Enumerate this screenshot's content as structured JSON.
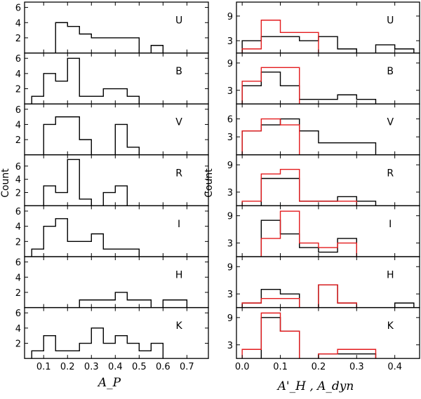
{
  "figure": {
    "ylabel_text": "Count",
    "left_xlabel": "A_P",
    "right_xlabel": "A'_H , A_dyn",
    "colors": {
      "black": "#000000",
      "red": "#e31a1c",
      "gray": "#777777"
    }
  },
  "chart_data": [
    {
      "type": "histogram",
      "column": "left",
      "xlabel": "A_P",
      "ylabel": "Count",
      "xlim": [
        0.02,
        0.79
      ],
      "xticks": [
        "0.1",
        "0.2",
        "0.3",
        "0.4",
        "0.5",
        "0.6",
        "0.7"
      ],
      "bin_width": 0.05,
      "panels": [
        {
          "band": "U",
          "ylim": [
            0,
            6.7
          ],
          "yticks": [
            2,
            4,
            6
          ],
          "series": [
            {
              "name": "black",
              "color": "#000000",
              "bins": [
                [
                  0.15,
                  4
                ],
                [
                  0.2,
                  3.5
                ],
                [
                  0.25,
                  2.5
                ],
                [
                  0.3,
                  2
                ],
                [
                  0.35,
                  2
                ],
                [
                  0.4,
                  2
                ],
                [
                  0.45,
                  2
                ],
                [
                  0.55,
                  1
                ]
              ]
            }
          ]
        },
        {
          "band": "B",
          "ylim": [
            0,
            6.7
          ],
          "yticks": [
            2,
            4,
            6
          ],
          "series": [
            {
              "name": "black",
              "color": "#000000",
              "bins": [
                [
                  0.05,
                  1
                ],
                [
                  0.1,
                  4
                ],
                [
                  0.15,
                  3
                ],
                [
                  0.2,
                  6
                ],
                [
                  0.25,
                  1
                ],
                [
                  0.3,
                  1
                ],
                [
                  0.35,
                  2
                ],
                [
                  0.4,
                  2
                ],
                [
                  0.45,
                  1
                ]
              ]
            }
          ]
        },
        {
          "band": "V",
          "ylim": [
            0,
            6.7
          ],
          "yticks": [
            2,
            4,
            6
          ],
          "series": [
            {
              "name": "black",
              "color": "#000000",
              "bins": [
                [
                  0.1,
                  4
                ],
                [
                  0.15,
                  5
                ],
                [
                  0.2,
                  5
                ],
                [
                  0.25,
                  2
                ],
                [
                  0.4,
                  4
                ],
                [
                  0.45,
                  1
                ]
              ]
            }
          ]
        },
        {
          "band": "R",
          "ylim": [
            0,
            7.7
          ],
          "yticks": [
            2,
            4,
            6
          ],
          "series": [
            {
              "name": "black",
              "color": "#000000",
              "bins": [
                [
                  0.1,
                  3
                ],
                [
                  0.15,
                  2
                ],
                [
                  0.2,
                  7
                ],
                [
                  0.25,
                  1
                ],
                [
                  0.35,
                  2
                ],
                [
                  0.4,
                  3
                ]
              ]
            }
          ]
        },
        {
          "band": "I",
          "ylim": [
            0,
            6.7
          ],
          "yticks": [
            2,
            4,
            6
          ],
          "series": [
            {
              "name": "black",
              "color": "#000000",
              "bins": [
                [
                  0.05,
                  1
                ],
                [
                  0.1,
                  4
                ],
                [
                  0.15,
                  5
                ],
                [
                  0.2,
                  2
                ],
                [
                  0.25,
                  2
                ],
                [
                  0.3,
                  3
                ],
                [
                  0.35,
                  1
                ],
                [
                  0.4,
                  1
                ],
                [
                  0.45,
                  1
                ]
              ]
            }
          ]
        },
        {
          "band": "H",
          "ylim": [
            0,
            6.7
          ],
          "yticks": [
            2,
            4,
            6
          ],
          "series": [
            {
              "name": "black",
              "color": "#000000",
              "bins": [
                [
                  0.25,
                  1
                ],
                [
                  0.3,
                  1
                ],
                [
                  0.35,
                  1
                ],
                [
                  0.4,
                  2
                ],
                [
                  0.45,
                  1
                ],
                [
                  0.5,
                  1
                ],
                [
                  0.6,
                  1
                ],
                [
                  0.65,
                  1
                ]
              ]
            }
          ]
        },
        {
          "band": "K",
          "ylim": [
            0,
            6.7
          ],
          "yticks": [
            2,
            4,
            6
          ],
          "series": [
            {
              "name": "black",
              "color": "#000000",
              "bins": [
                [
                  0.05,
                  1
                ],
                [
                  0.1,
                  3
                ],
                [
                  0.15,
                  1
                ],
                [
                  0.2,
                  1
                ],
                [
                  0.25,
                  2
                ],
                [
                  0.3,
                  4
                ],
                [
                  0.35,
                  2
                ],
                [
                  0.4,
                  3
                ],
                [
                  0.45,
                  2
                ],
                [
                  0.5,
                  1
                ],
                [
                  0.55,
                  2
                ]
              ]
            }
          ]
        }
      ]
    },
    {
      "type": "histogram",
      "column": "right",
      "xlabel": "A'_H , A_dyn",
      "ylabel": "",
      "xlim": [
        -0.015,
        0.465
      ],
      "xticks": [
        "0.0",
        "0.1",
        "0.2",
        "0.3",
        "0.4"
      ],
      "bin_width": 0.05,
      "panels": [
        {
          "band": "U",
          "ylim": [
            0,
            12.4
          ],
          "yticks": [
            3,
            9
          ],
          "series": [
            {
              "name": "black",
              "color": "#000000",
              "bins": [
                [
                  0.0,
                  3
                ],
                [
                  0.05,
                  4
                ],
                [
                  0.1,
                  4
                ],
                [
                  0.15,
                  3
                ],
                [
                  0.2,
                  4
                ],
                [
                  0.25,
                  1
                ],
                [
                  0.35,
                  2
                ],
                [
                  0.4,
                  1
                ]
              ]
            },
            {
              "name": "red",
              "color": "#e31a1c",
              "bins": [
                [
                  0.0,
                  1
                ],
                [
                  0.05,
                  8
                ],
                [
                  0.1,
                  5
                ],
                [
                  0.15,
                  5
                ]
              ]
            }
          ]
        },
        {
          "band": "B",
          "ylim": [
            0,
            11.2
          ],
          "yticks": [
            3,
            9
          ],
          "series": [
            {
              "name": "black",
              "color": "#000000",
              "bins": [
                [
                  0.0,
                  4
                ],
                [
                  0.05,
                  7
                ],
                [
                  0.1,
                  4
                ],
                [
                  0.15,
                  1
                ],
                [
                  0.2,
                  1
                ],
                [
                  0.25,
                  2
                ],
                [
                  0.3,
                  1
                ]
              ]
            },
            {
              "name": "red",
              "color": "#e31a1c",
              "bins": [
                [
                  0.0,
                  5
                ],
                [
                  0.05,
                  8
                ],
                [
                  0.1,
                  8
                ]
              ]
            }
          ]
        },
        {
          "band": "V",
          "ylim": [
            0,
            8.5
          ],
          "yticks": [
            3,
            6
          ],
          "series": [
            {
              "name": "black",
              "color": "#000000",
              "bins": [
                [
                  0.0,
                  4
                ],
                [
                  0.05,
                  5
                ],
                [
                  0.1,
                  6
                ],
                [
                  0.15,
                  4
                ],
                [
                  0.2,
                  2
                ],
                [
                  0.25,
                  2
                ],
                [
                  0.3,
                  2
                ]
              ]
            },
            {
              "name": "red",
              "color": "#e31a1c",
              "bins": [
                [
                  0.0,
                  4
                ],
                [
                  0.05,
                  6
                ],
                [
                  0.1,
                  5
                ]
              ]
            }
          ]
        },
        {
          "band": "R",
          "ylim": [
            0,
            11.2
          ],
          "yticks": [
            3,
            9
          ],
          "series": [
            {
              "name": "black",
              "color": "#000000",
              "bins": [
                [
                  0.05,
                  6
                ],
                [
                  0.1,
                  6
                ],
                [
                  0.15,
                  1
                ],
                [
                  0.2,
                  1
                ],
                [
                  0.25,
                  2
                ],
                [
                  0.3,
                  1
                ]
              ]
            },
            {
              "name": "red",
              "color": "#e31a1c",
              "bins": [
                [
                  0.0,
                  1
                ],
                [
                  0.05,
                  7
                ],
                [
                  0.1,
                  8
                ],
                [
                  0.15,
                  1
                ],
                [
                  0.2,
                  1
                ],
                [
                  0.25,
                  1
                ]
              ]
            }
          ]
        },
        {
          "band": "I",
          "ylim": [
            0,
            11.2
          ],
          "yticks": [
            3,
            9
          ],
          "series": [
            {
              "name": "black",
              "color": "#000000",
              "bins": [
                [
                  0.05,
                  8
                ],
                [
                  0.1,
                  5
                ],
                [
                  0.15,
                  2
                ],
                [
                  0.2,
                  1
                ],
                [
                  0.25,
                  4
                ]
              ]
            },
            {
              "name": "red",
              "color": "#e31a1c",
              "bins": [
                [
                  0.05,
                  4
                ],
                [
                  0.1,
                  10
                ],
                [
                  0.15,
                  3
                ],
                [
                  0.2,
                  2
                ],
                [
                  0.25,
                  3
                ]
              ]
            }
          ]
        },
        {
          "band": "H",
          "ylim": [
            0,
            11.2
          ],
          "yticks": [
            3,
            9
          ],
          "series": [
            {
              "name": "black",
              "color": "#000000",
              "bins": [
                [
                  0.0,
                  1
                ],
                [
                  0.05,
                  4
                ],
                [
                  0.1,
                  3
                ],
                [
                  0.2,
                  5
                ],
                [
                  0.25,
                  1
                ],
                [
                  0.4,
                  1
                ]
              ]
            },
            {
              "name": "red",
              "color": "#e31a1c",
              "bins": [
                [
                  0.0,
                  1
                ],
                [
                  0.05,
                  2
                ],
                [
                  0.1,
                  2
                ],
                [
                  0.2,
                  5
                ],
                [
                  0.25,
                  1
                ]
              ]
            }
          ]
        },
        {
          "band": "K",
          "ylim": [
            0,
            11.2
          ],
          "yticks": [
            3,
            9
          ],
          "series": [
            {
              "name": "black",
              "color": "#000000",
              "bins": [
                [
                  0.05,
                  9
                ],
                [
                  0.1,
                  6
                ],
                [
                  0.2,
                  1
                ],
                [
                  0.25,
                  1
                ],
                [
                  0.3,
                  1
                ]
              ]
            },
            {
              "name": "red",
              "color": "#e31a1c",
              "bins": [
                [
                  0.0,
                  2
                ],
                [
                  0.05,
                  10
                ],
                [
                  0.1,
                  6
                ],
                [
                  0.2,
                  1
                ],
                [
                  0.25,
                  2
                ],
                [
                  0.3,
                  2
                ]
              ]
            }
          ]
        }
      ]
    }
  ]
}
